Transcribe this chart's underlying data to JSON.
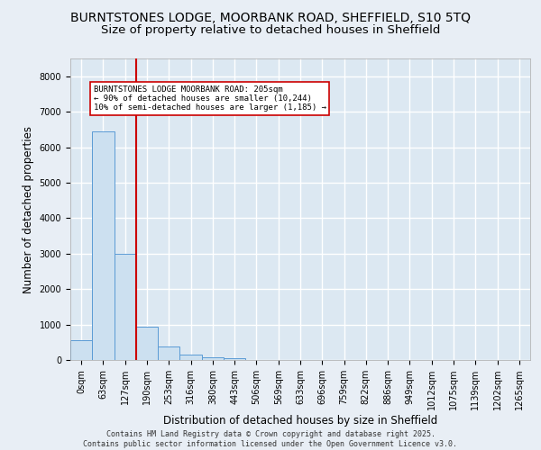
{
  "title_line1": "BURNTSTONES LODGE, MOORBANK ROAD, SHEFFIELD, S10 5TQ",
  "title_line2": "Size of property relative to detached houses in Sheffield",
  "xlabel": "Distribution of detached houses by size in Sheffield",
  "ylabel": "Number of detached properties",
  "bar_values": [
    550,
    6450,
    3000,
    950,
    370,
    150,
    80,
    50,
    0,
    0,
    0,
    0,
    0,
    0,
    0,
    0,
    0,
    0,
    0,
    0,
    0
  ],
  "bar_labels": [
    "0sqm",
    "63sqm",
    "127sqm",
    "190sqm",
    "253sqm",
    "316sqm",
    "380sqm",
    "443sqm",
    "506sqm",
    "569sqm",
    "633sqm",
    "696sqm",
    "759sqm",
    "822sqm",
    "886sqm",
    "949sqm",
    "1012sqm",
    "1075sqm",
    "1139sqm",
    "1202sqm",
    "1265sqm"
  ],
  "bar_color": "#cce0f0",
  "bar_edge_color": "#5b9bd5",
  "vline_x_index": 3,
  "vline_color": "#cc0000",
  "annotation_text": "BURNTSTONES LODGE MOORBANK ROAD: 205sqm\n← 90% of detached houses are smaller (10,244)\n10% of semi-detached houses are larger (1,185) →",
  "annotation_box_color": "#ffffff",
  "annotation_box_edge": "#cc0000",
  "ylim": [
    0,
    8500
  ],
  "yticks": [
    0,
    1000,
    2000,
    3000,
    4000,
    5000,
    6000,
    7000,
    8000
  ],
  "fig_bg_color": "#e8eef5",
  "ax_bg_color": "#dce8f2",
  "grid_color": "#ffffff",
  "footer_text": "Contains HM Land Registry data © Crown copyright and database right 2025.\nContains public sector information licensed under the Open Government Licence v3.0.",
  "title_fontsize": 10,
  "label_fontsize": 8.5,
  "tick_fontsize": 7,
  "footer_fontsize": 6
}
